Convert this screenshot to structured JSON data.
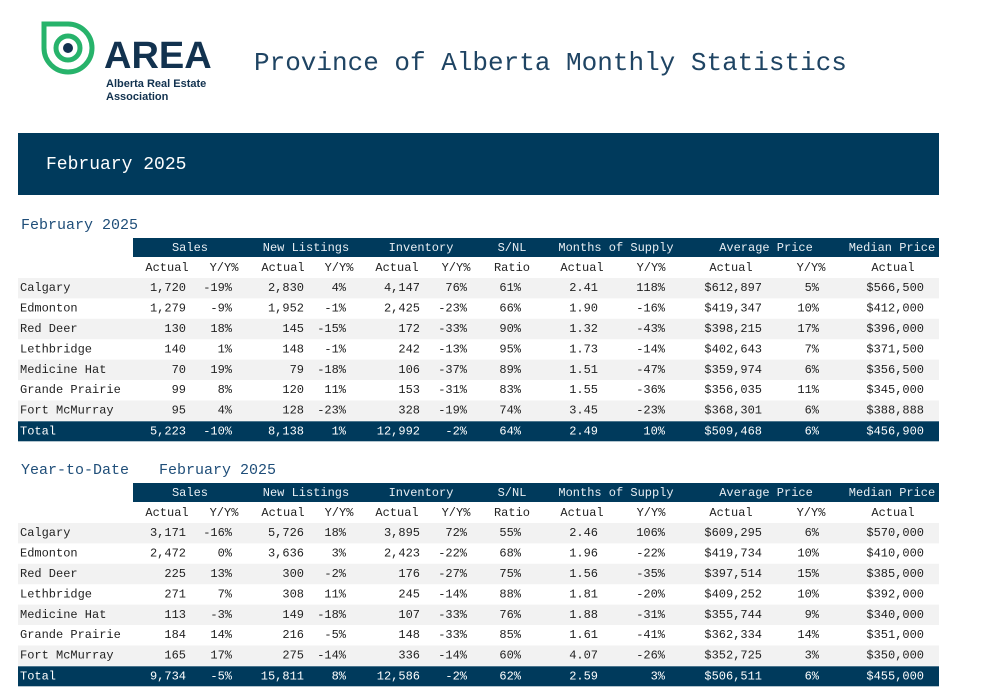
{
  "header": {
    "logo_text": "AREA",
    "logo_sub": [
      "Alberta Real Estate",
      "Association"
    ],
    "title": "Province of Alberta Monthly Statistics"
  },
  "banner": "February 2025",
  "sections": [
    {
      "label": "February 2025",
      "period": null,
      "groups": [
        "Sales",
        "New Listings",
        "Inventory",
        "S/NL",
        "Months of Supply",
        "Average Price",
        "Median Price"
      ],
      "subheaders": [
        "Actual",
        "Y/Y%",
        "Actual",
        "Y/Y%",
        "Actual",
        "Y/Y%",
        "Ratio",
        "Actual",
        "Y/Y%",
        "Actual",
        "Y/Y%",
        "Actual"
      ],
      "rows": [
        [
          "Calgary",
          "1,720",
          "-19%",
          "2,830",
          "4%",
          "4,147",
          "76%",
          "61%",
          "2.41",
          "118%",
          "$612,897",
          "5%",
          "$566,500"
        ],
        [
          "Edmonton",
          "1,279",
          "-9%",
          "1,952",
          "-1%",
          "2,425",
          "-23%",
          "66%",
          "1.90",
          "-16%",
          "$419,347",
          "10%",
          "$412,000"
        ],
        [
          "Red Deer",
          "130",
          "18%",
          "145",
          "-15%",
          "172",
          "-33%",
          "90%",
          "1.32",
          "-43%",
          "$398,215",
          "17%",
          "$396,000"
        ],
        [
          "Lethbridge",
          "140",
          "1%",
          "148",
          "-1%",
          "242",
          "-13%",
          "95%",
          "1.73",
          "-14%",
          "$402,643",
          "7%",
          "$371,500"
        ],
        [
          "Medicine Hat",
          "70",
          "19%",
          "79",
          "-18%",
          "106",
          "-37%",
          "89%",
          "1.51",
          "-47%",
          "$359,974",
          "6%",
          "$356,500"
        ],
        [
          "Grande Prairie",
          "99",
          "8%",
          "120",
          "11%",
          "153",
          "-31%",
          "83%",
          "1.55",
          "-36%",
          "$356,035",
          "11%",
          "$345,000"
        ],
        [
          "Fort McMurray",
          "95",
          "4%",
          "128",
          "-23%",
          "328",
          "-19%",
          "74%",
          "3.45",
          "-23%",
          "$368,301",
          "6%",
          "$388,888"
        ]
      ],
      "total": [
        "Total",
        "5,223",
        "-10%",
        "8,138",
        "1%",
        "12,992",
        "-2%",
        "64%",
        "2.49",
        "10%",
        "$509,468",
        "6%",
        "$456,900"
      ]
    },
    {
      "label": "Year-to-Date",
      "period": "February 2025",
      "groups": [
        "Sales",
        "New Listings",
        "Inventory",
        "S/NL",
        "Months of Supply",
        "Average Price",
        "Median Price"
      ],
      "subheaders": [
        "Actual",
        "Y/Y%",
        "Actual",
        "Y/Y%",
        "Actual",
        "Y/Y%",
        "Ratio",
        "Actual",
        "Y/Y%",
        "Actual",
        "Y/Y%",
        "Actual"
      ],
      "rows": [
        [
          "Calgary",
          "3,171",
          "-16%",
          "5,726",
          "18%",
          "3,895",
          "72%",
          "55%",
          "2.46",
          "106%",
          "$609,295",
          "6%",
          "$570,000"
        ],
        [
          "Edmonton",
          "2,472",
          "0%",
          "3,636",
          "3%",
          "2,423",
          "-22%",
          "68%",
          "1.96",
          "-22%",
          "$419,734",
          "10%",
          "$410,000"
        ],
        [
          "Red Deer",
          "225",
          "13%",
          "300",
          "-2%",
          "176",
          "-27%",
          "75%",
          "1.56",
          "-35%",
          "$397,514",
          "15%",
          "$385,000"
        ],
        [
          "Lethbridge",
          "271",
          "7%",
          "308",
          "11%",
          "245",
          "-14%",
          "88%",
          "1.81",
          "-20%",
          "$409,252",
          "10%",
          "$392,000"
        ],
        [
          "Medicine Hat",
          "113",
          "-3%",
          "149",
          "-18%",
          "107",
          "-33%",
          "76%",
          "1.88",
          "-31%",
          "$355,744",
          "9%",
          "$340,000"
        ],
        [
          "Grande Prairie",
          "184",
          "14%",
          "216",
          "-5%",
          "148",
          "-33%",
          "85%",
          "1.61",
          "-41%",
          "$362,334",
          "14%",
          "$351,000"
        ],
        [
          "Fort McMurray",
          "165",
          "17%",
          "275",
          "-14%",
          "336",
          "-14%",
          "60%",
          "4.07",
          "-26%",
          "$352,725",
          "3%",
          "$350,000"
        ]
      ],
      "total": [
        "Total",
        "9,734",
        "-5%",
        "15,811",
        "8%",
        "12,586",
        "-2%",
        "62%",
        "2.59",
        "3%",
        "$506,511",
        "6%",
        "$455,000"
      ]
    }
  ]
}
